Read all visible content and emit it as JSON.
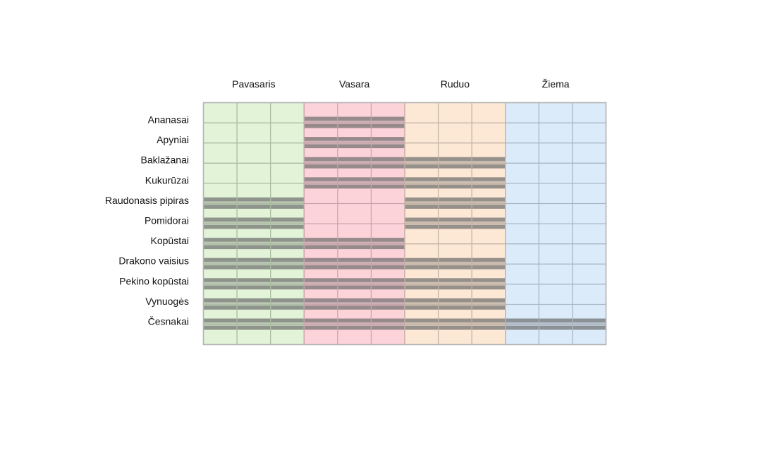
{
  "chart_data": {
    "type": "heatmap",
    "title": "",
    "seasons": [
      {
        "name": "Pavasaris",
        "color": "#e2f3d8"
      },
      {
        "name": "Vasara",
        "color": "#fdd3da"
      },
      {
        "name": "Ruduo",
        "color": "#fde8d6"
      },
      {
        "name": "Žiema",
        "color": "#dcebfa"
      }
    ],
    "months_per_season": 3,
    "crops": [
      "Ananasai",
      "Apyniai",
      "Baklažanai",
      "Kukurūzai",
      "Raudonasis pipiras",
      "Pomidorai",
      "Kopūstai",
      "Drakono vaisius",
      "Pekino kopūstai",
      "Vynuogės",
      "Česnakai"
    ],
    "active": [
      [
        0,
        1,
        0,
        0
      ],
      [
        0,
        1,
        0,
        0
      ],
      [
        0,
        1,
        1,
        0
      ],
      [
        0,
        1,
        1,
        0
      ],
      [
        1,
        0,
        1,
        0
      ],
      [
        1,
        0,
        1,
        0
      ],
      [
        1,
        1,
        0,
        0
      ],
      [
        1,
        1,
        1,
        0
      ],
      [
        1,
        1,
        1,
        0
      ],
      [
        1,
        1,
        1,
        0
      ],
      [
        1,
        1,
        1,
        1
      ]
    ],
    "bar_color": "#6d6d6d",
    "grid_colors": {
      "Pavasaris": "#a9bca0",
      "Vasara": "#c9a4aa",
      "Ruduo": "#c4b3a5",
      "Žiema": "#a8b6c5"
    }
  }
}
